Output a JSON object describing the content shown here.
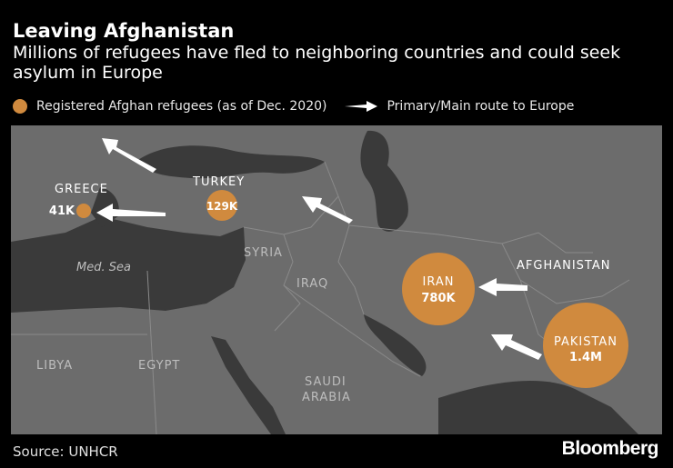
{
  "header": {
    "title": "Leaving Afghanistan",
    "subtitle": "Millions of refugees have fled to neighboring countries and could seek asylum in Europe"
  },
  "legend": {
    "circle_label": "Registered Afghan refugees (as of Dec. 2020)",
    "arrow_label": "Primary/Main route to Europe"
  },
  "colors": {
    "refugee_circle": "#d08a3e",
    "land": "#6c6c6c",
    "water": "#3a3a3a",
    "background": "#000000"
  },
  "map": {
    "country_labels": {
      "turkey": "TURKEY",
      "greece": "GREECE",
      "syria": "SYRIA",
      "iraq": "IRAQ",
      "afghanistan": "AFGHANISTAN",
      "libya": "LIBYA",
      "egypt": "EGYPT",
      "saudi_arabia": "SAUDI\nARABIA"
    },
    "sea_label": "Med. Sea",
    "refugees": [
      {
        "country": "GREECE",
        "value": "41K",
        "count": 41000
      },
      {
        "country": "TURKEY",
        "value": "129K",
        "count": 129000
      },
      {
        "country": "IRAN",
        "value": "780K",
        "count": 780000
      },
      {
        "country": "PAKISTAN",
        "value": "1.4M",
        "count": 1400000
      }
    ]
  },
  "footer": {
    "source": "Source: UNHCR",
    "brand": "Bloomberg"
  }
}
